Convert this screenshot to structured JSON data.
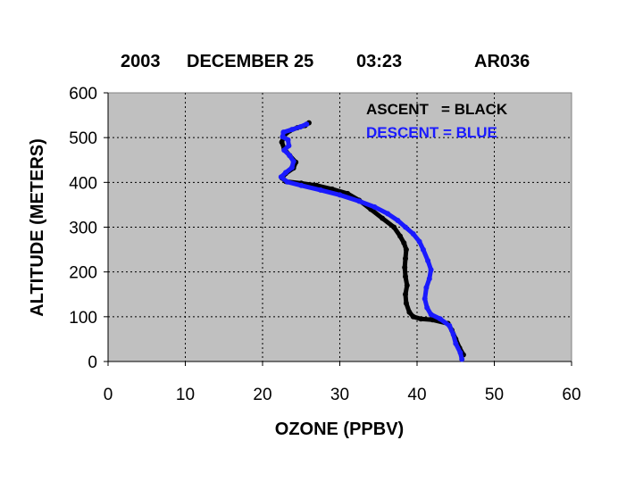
{
  "chart_data": {
    "type": "scatter",
    "title_parts": [
      "2003",
      "DECEMBER 25",
      "03:23",
      "AR036"
    ],
    "xlabel": "OZONE (PPBV)",
    "ylabel": "ALTITUDE (METERS)",
    "xlim": [
      0,
      60
    ],
    "ylim": [
      0,
      600
    ],
    "xticks": [
      "0",
      "10",
      "20",
      "30",
      "40",
      "50",
      "60"
    ],
    "yticks": [
      "0",
      "100",
      "200",
      "300",
      "400",
      "500",
      "600"
    ],
    "grid": true,
    "plot_background": "#c0c0c0",
    "legend_placement": "top-right",
    "legend": [
      {
        "label": "ASCENT   = BLACK",
        "color": "#000000"
      },
      {
        "label": "DESCENT = BLUE",
        "color": "#1a1aff"
      }
    ],
    "series": [
      {
        "color": "#000000",
        "points": [
          [
            46,
            15
          ],
          [
            45.5,
            30
          ],
          [
            45,
            50
          ],
          [
            44.5,
            70
          ],
          [
            44,
            85
          ],
          [
            42,
            93
          ],
          [
            40.5,
            95
          ],
          [
            39.5,
            100
          ],
          [
            39,
            110
          ],
          [
            38.6,
            130
          ],
          [
            38.5,
            150
          ],
          [
            38.7,
            170
          ],
          [
            38.5,
            190
          ],
          [
            38.4,
            210
          ],
          [
            38.5,
            230
          ],
          [
            38.6,
            250
          ],
          [
            38.3,
            265
          ],
          [
            37.8,
            280
          ],
          [
            37,
            300
          ],
          [
            35.5,
            320
          ],
          [
            34,
            340
          ],
          [
            32.5,
            360
          ],
          [
            31,
            375
          ],
          [
            29,
            385
          ],
          [
            27,
            393
          ],
          [
            25,
            398
          ],
          [
            23,
            402
          ],
          [
            22.5,
            410
          ],
          [
            23,
            420
          ],
          [
            24,
            432
          ],
          [
            24.3,
            445
          ],
          [
            23.5,
            460
          ],
          [
            22.8,
            475
          ],
          [
            22.5,
            490
          ],
          [
            22.8,
            505
          ],
          [
            23.5,
            515
          ],
          [
            24.5,
            522
          ],
          [
            25.5,
            527
          ],
          [
            26,
            533
          ]
        ]
      },
      {
        "color": "#1a1aff",
        "points": [
          [
            45.8,
            5
          ],
          [
            45.6,
            20
          ],
          [
            45,
            40
          ],
          [
            44.7,
            60
          ],
          [
            44.2,
            80
          ],
          [
            43,
            95
          ],
          [
            41.8,
            105
          ],
          [
            41.3,
            120
          ],
          [
            41,
            140
          ],
          [
            41.2,
            165
          ],
          [
            41.6,
            185
          ],
          [
            41.8,
            205
          ],
          [
            41.4,
            225
          ],
          [
            40.8,
            250
          ],
          [
            40.3,
            268
          ],
          [
            39.5,
            285
          ],
          [
            38.5,
            300
          ],
          [
            37.5,
            315
          ],
          [
            36.2,
            330
          ],
          [
            34.5,
            345
          ],
          [
            32.5,
            358
          ],
          [
            30,
            372
          ],
          [
            27.5,
            383
          ],
          [
            25,
            393
          ],
          [
            23.2,
            401
          ],
          [
            22.4,
            412
          ],
          [
            23,
            422
          ],
          [
            23.8,
            433
          ],
          [
            24,
            447
          ],
          [
            23.5,
            460
          ],
          [
            22.8,
            472
          ],
          [
            23.4,
            482
          ],
          [
            23.3,
            495
          ],
          [
            22.6,
            502
          ],
          [
            22.7,
            512
          ],
          [
            23.8,
            518
          ],
          [
            24.9,
            524
          ],
          [
            25.7,
            530
          ]
        ]
      }
    ]
  }
}
